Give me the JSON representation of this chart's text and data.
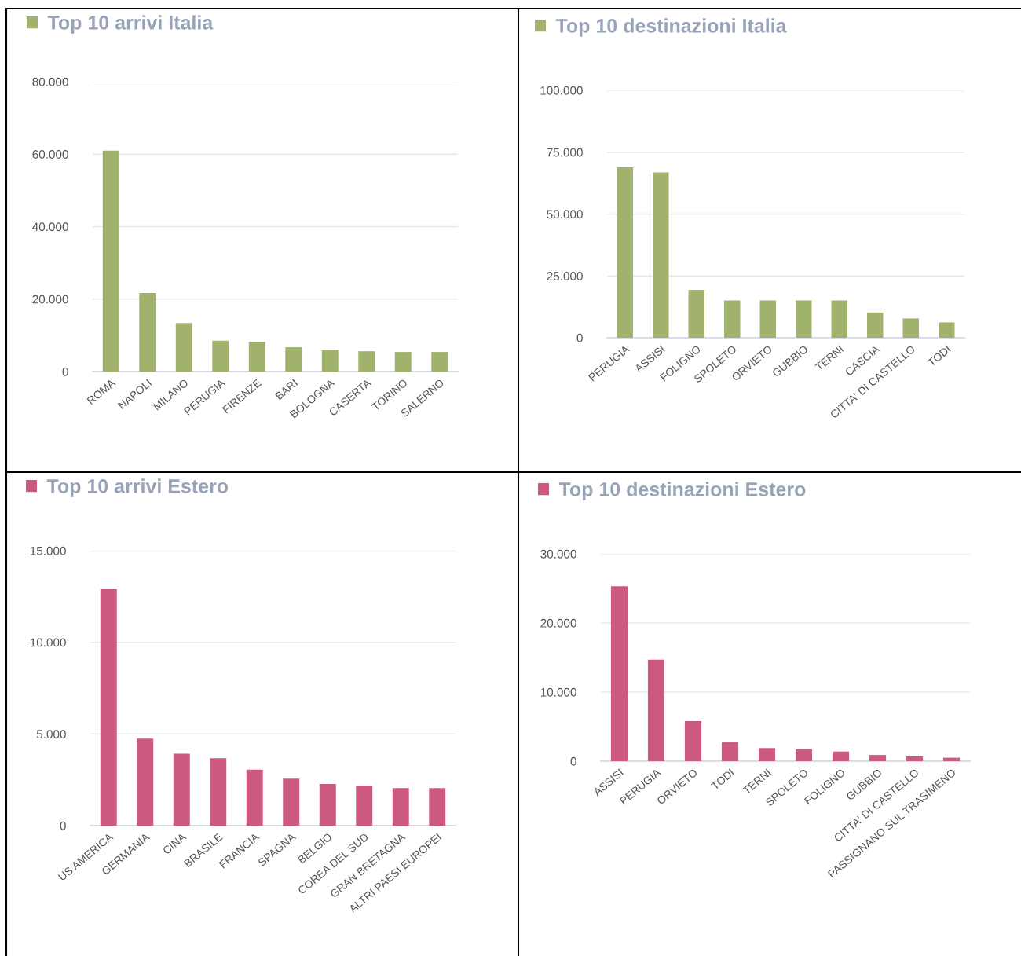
{
  "chart_data": [
    {
      "type": "bar",
      "categories": [
        "ROMA",
        "NAPOLI",
        "MILANO",
        "PERUGIA",
        "FIRENZE",
        "BARI",
        "BOLOGNA",
        "CASERTA",
        "TORINO",
        "SALERNO"
      ],
      "series": [
        {
          "name": "Top 10 arrivi Italia",
          "color": "#a0b26c",
          "values": [
            61000,
            21700,
            13400,
            8500,
            8200,
            6700,
            5900,
            5600,
            5400,
            5400
          ]
        }
      ],
      "ylim": [
        0,
        80000
      ],
      "yticks": [
        0,
        {
          "value": 20000,
          "label": "20.000"
        },
        {
          "value": 40000,
          "label": "40.000"
        },
        {
          "value": 60000,
          "label": "60.000"
        },
        {
          "value": 80000,
          "label": "80.000"
        }
      ],
      "grid": "y",
      "legend": "top left"
    },
    {
      "type": "bar",
      "categories": [
        "PERUGIA",
        "ASSISI",
        "FOLIGNO",
        "SPOLETO",
        "ORVIETO",
        "GUBBIO",
        "TERNI",
        "CASCIA",
        "CITTA' DI CASTELLO",
        "TODI"
      ],
      "series": [
        {
          "name": "Top 10 destinazioni Italia",
          "color": "#a0b26c",
          "values": [
            68900,
            66800,
            19400,
            15100,
            15100,
            15100,
            15100,
            10200,
            7800,
            6200
          ]
        }
      ],
      "ylim": [
        0,
        100000
      ],
      "yticks": [
        0,
        {
          "value": 25000,
          "label": "25.000"
        },
        {
          "value": 50000,
          "label": "50.000"
        },
        {
          "value": 75000,
          "label": "75.000"
        },
        {
          "value": 100000,
          "label": "100.000"
        }
      ],
      "grid": "y",
      "legend": "top left"
    },
    {
      "type": "bar",
      "categories": [
        "US AMERICA",
        "GERMANIA",
        "CINA",
        "BRASILE",
        "FRANCIA",
        "SPAGNA",
        "BELGIO",
        "COREA DEL SUD",
        "GRAN BRETAGNA",
        "ALTRI PAESI EUROPEI"
      ],
      "series": [
        {
          "name": "Top 10 arrivi Estero",
          "color": "#cc5a7e",
          "values": [
            12900,
            4750,
            3920,
            3670,
            3050,
            2560,
            2270,
            2190,
            2050,
            2050
          ]
        }
      ],
      "ylim": [
        0,
        15000
      ],
      "yticks": [
        0,
        {
          "value": 5000,
          "label": "5.000"
        },
        {
          "value": 10000,
          "label": "10.000"
        },
        {
          "value": 15000,
          "label": "15.000"
        }
      ],
      "grid": "y",
      "legend": "top left"
    },
    {
      "type": "bar",
      "categories": [
        "ASSISI",
        "PERUGIA",
        "ORVIETO",
        "TODI",
        "TERNI",
        "SPOLETO",
        "FOLIGNO",
        "GUBBIO",
        "CITTA' DI CASTELLO",
        "PASSIGNANO SUL TRASIMENO"
      ],
      "series": [
        {
          "name": "Top 10 destinazioni Estero",
          "color": "#cc5a7e",
          "values": [
            25300,
            14700,
            5800,
            2800,
            1900,
            1700,
            1400,
            900,
            700,
            500
          ]
        }
      ],
      "ylim": [
        0,
        30000
      ],
      "yticks": [
        0,
        {
          "value": 10000,
          "label": "10.000"
        },
        {
          "value": 20000,
          "label": "20.000"
        },
        {
          "value": 30000,
          "label": "30.000"
        }
      ],
      "grid": "y",
      "legend": "top left"
    }
  ]
}
